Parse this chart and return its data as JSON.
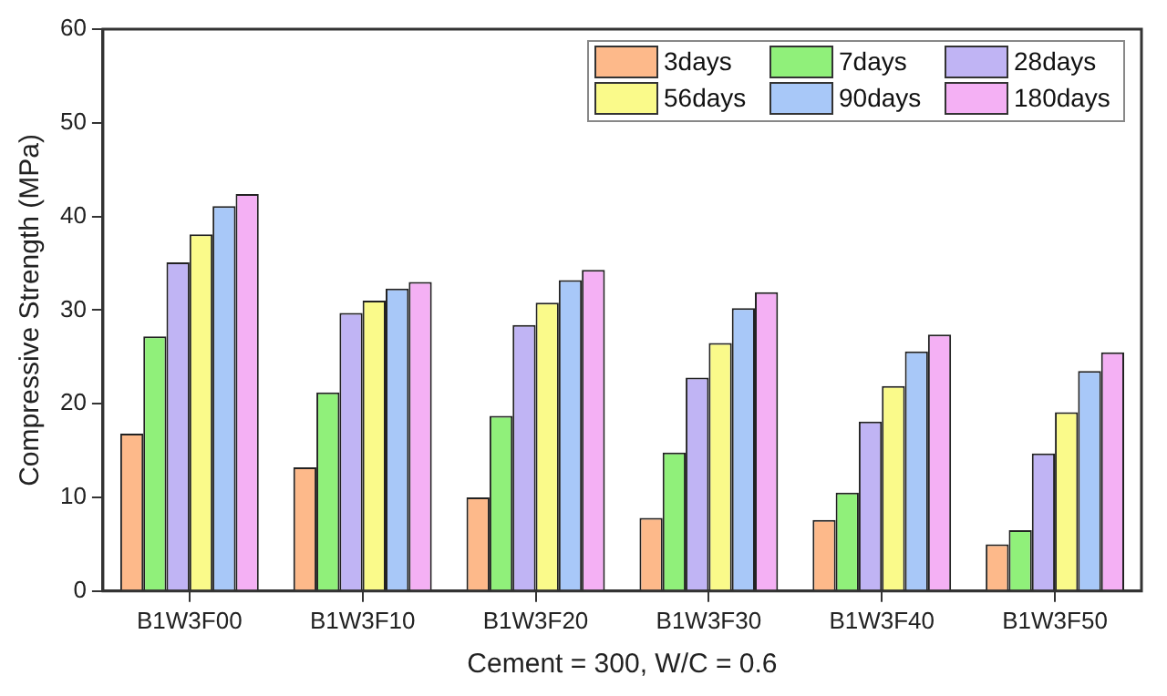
{
  "chart_data": {
    "type": "bar",
    "xlabel": "Cement = 300, W/C = 0.6",
    "ylabel": "Compressive Strength (MPa)",
    "categories": [
      "B1W3F00",
      "B1W3F10",
      "B1W3F20",
      "B1W3F30",
      "B1W3F40",
      "B1W3F50"
    ],
    "series": [
      {
        "name": "3days",
        "color": "#fdb98a",
        "values": [
          16.8,
          13.2,
          10,
          7.8,
          7.6,
          5
        ]
      },
      {
        "name": "7days",
        "color": "#90f07a",
        "values": [
          27.2,
          21.2,
          18.7,
          14.8,
          10.5,
          6.5
        ]
      },
      {
        "name": "28days",
        "color": "#c0b4f4",
        "values": [
          35.1,
          29.7,
          28.4,
          22.8,
          18.1,
          14.7
        ]
      },
      {
        "name": "56days",
        "color": "#fafa8a",
        "values": [
          38.1,
          31,
          30.8,
          26.5,
          21.9,
          19.1
        ]
      },
      {
        "name": "90days",
        "color": "#a8c8f8",
        "values": [
          41.1,
          32.3,
          33.2,
          30.2,
          25.6,
          23.5
        ]
      },
      {
        "name": "180days",
        "color": "#f4b0f4",
        "values": [
          42.4,
          33,
          34.3,
          31.9,
          27.4,
          25.5
        ]
      }
    ],
    "ylim": [
      0,
      60
    ],
    "yticks": [
      0,
      10,
      20,
      30,
      40,
      50,
      60
    ],
    "grid": false,
    "legend": "top right"
  }
}
